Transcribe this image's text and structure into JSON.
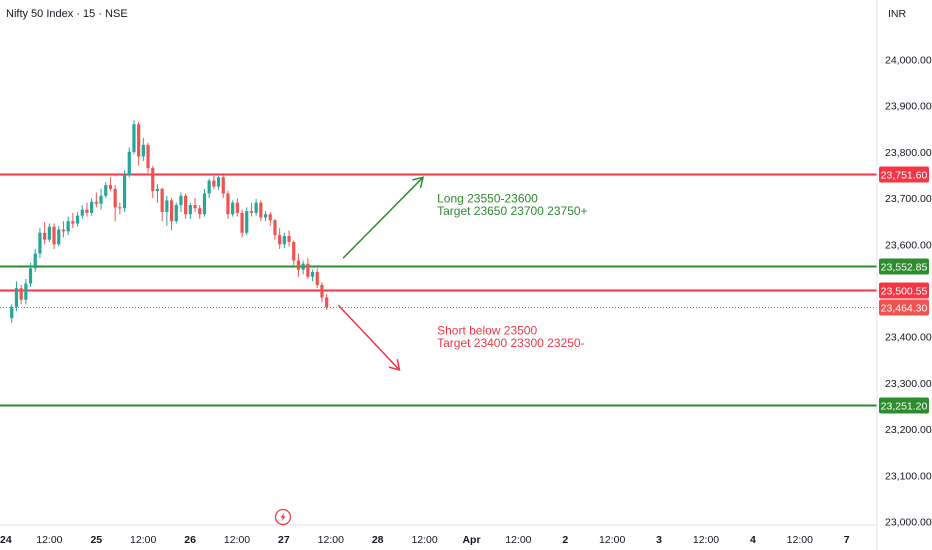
{
  "header": {
    "symbol_title": "Nifty 50 Index · 15 · NSE",
    "currency": "INR"
  },
  "colors": {
    "up": "#26a69a",
    "down": "#ef5350",
    "red_level": "#f23645",
    "green_level": "#2e8b2e",
    "last_price_badge": "#ef5350",
    "axis_text": "#131722",
    "axis_line": "#e0e3eb"
  },
  "event_icon": "lightning-icon",
  "chart_data": {
    "type": "candlestick",
    "title": "Nifty 50 Index · 15 · NSE",
    "ylim": [
      22990,
      24110
    ],
    "yticks": [
      {
        "value": 24000,
        "label": "24,000.00"
      },
      {
        "value": 23900,
        "label": "23,900.00"
      },
      {
        "value": 23800,
        "label": "23,800.00"
      },
      {
        "value": 23700,
        "label": "23,700.00"
      },
      {
        "value": 23600,
        "label": "23,600.00"
      },
      {
        "value": 23400,
        "label": "23,400.00"
      },
      {
        "value": 23300,
        "label": "23,300.00"
      },
      {
        "value": 23200,
        "label": "23,200.00"
      },
      {
        "value": 23100,
        "label": "23,100.00"
      },
      {
        "value": 23000,
        "label": "23,000.00"
      }
    ],
    "xticks": [
      {
        "pos": 0,
        "label": "24",
        "bold": true
      },
      {
        "pos": 1,
        "label": "12:00",
        "bold": false
      },
      {
        "pos": 2,
        "label": "25",
        "bold": true
      },
      {
        "pos": 3,
        "label": "12:00",
        "bold": false
      },
      {
        "pos": 4,
        "label": "26",
        "bold": true
      },
      {
        "pos": 5,
        "label": "12:00",
        "bold": false
      },
      {
        "pos": 6,
        "label": "27",
        "bold": true
      },
      {
        "pos": 7,
        "label": "12:00",
        "bold": false
      },
      {
        "pos": 8,
        "label": "28",
        "bold": true
      },
      {
        "pos": 9,
        "label": "12:00",
        "bold": false
      },
      {
        "pos": 10,
        "label": "Apr",
        "bold": true
      },
      {
        "pos": 11,
        "label": "12:00",
        "bold": false
      },
      {
        "pos": 12,
        "label": "2",
        "bold": true
      },
      {
        "pos": 13,
        "label": "12:00",
        "bold": false
      },
      {
        "pos": 14,
        "label": "3",
        "bold": true
      },
      {
        "pos": 15,
        "label": "12:00",
        "bold": false
      },
      {
        "pos": 16,
        "label": "4",
        "bold": true
      },
      {
        "pos": 17,
        "label": "12:00",
        "bold": false
      },
      {
        "pos": 18,
        "label": "7",
        "bold": true
      }
    ],
    "candles": [
      [
        23440,
        23470,
        23430,
        23465
      ],
      [
        23465,
        23520,
        23455,
        23505
      ],
      [
        23505,
        23512,
        23470,
        23480
      ],
      [
        23480,
        23525,
        23470,
        23515
      ],
      [
        23515,
        23560,
        23508,
        23548
      ],
      [
        23548,
        23590,
        23540,
        23580
      ],
      [
        23580,
        23635,
        23570,
        23625
      ],
      [
        23625,
        23648,
        23600,
        23610
      ],
      [
        23610,
        23645,
        23605,
        23638
      ],
      [
        23638,
        23645,
        23590,
        23600
      ],
      [
        23600,
        23640,
        23595,
        23632
      ],
      [
        23632,
        23650,
        23615,
        23628
      ],
      [
        23628,
        23660,
        23620,
        23650
      ],
      [
        23650,
        23668,
        23635,
        23645
      ],
      [
        23645,
        23670,
        23638,
        23662
      ],
      [
        23662,
        23685,
        23655,
        23675
      ],
      [
        23675,
        23690,
        23660,
        23668
      ],
      [
        23668,
        23700,
        23662,
        23692
      ],
      [
        23692,
        23712,
        23680,
        23688
      ],
      [
        23688,
        23720,
        23675,
        23705
      ],
      [
        23705,
        23735,
        23700,
        23728
      ],
      [
        23728,
        23745,
        23715,
        23720
      ],
      [
        23720,
        23728,
        23650,
        23680
      ],
      [
        23680,
        23690,
        23665,
        23678
      ],
      [
        23678,
        23760,
        23670,
        23750
      ],
      [
        23750,
        23810,
        23745,
        23800
      ],
      [
        23800,
        23868,
        23795,
        23860
      ],
      [
        23860,
        23865,
        23770,
        23790
      ],
      [
        23790,
        23830,
        23780,
        23815
      ],
      [
        23815,
        23820,
        23755,
        23765
      ],
      [
        23765,
        23770,
        23700,
        23715
      ],
      [
        23715,
        23730,
        23690,
        23720
      ],
      [
        23720,
        23722,
        23650,
        23670
      ],
      [
        23670,
        23705,
        23640,
        23695
      ],
      [
        23695,
        23700,
        23630,
        23650
      ],
      [
        23650,
        23690,
        23645,
        23685
      ],
      [
        23685,
        23712,
        23670,
        23705
      ],
      [
        23705,
        23710,
        23655,
        23665
      ],
      [
        23665,
        23690,
        23655,
        23685
      ],
      [
        23685,
        23700,
        23670,
        23678
      ],
      [
        23678,
        23685,
        23655,
        23665
      ],
      [
        23665,
        23720,
        23660,
        23710
      ],
      [
        23710,
        23742,
        23700,
        23738
      ],
      [
        23738,
        23748,
        23720,
        23725
      ],
      [
        23725,
        23748,
        23718,
        23745
      ],
      [
        23745,
        23750,
        23700,
        23710
      ],
      [
        23710,
        23716,
        23655,
        23665
      ],
      [
        23665,
        23695,
        23660,
        23690
      ],
      [
        23690,
        23700,
        23660,
        23668
      ],
      [
        23668,
        23675,
        23615,
        23625
      ],
      [
        23625,
        23680,
        23620,
        23672
      ],
      [
        23672,
        23690,
        23660,
        23668
      ],
      [
        23668,
        23698,
        23662,
        23690
      ],
      [
        23690,
        23695,
        23650,
        23658
      ],
      [
        23658,
        23672,
        23650,
        23665
      ],
      [
        23665,
        23670,
        23640,
        23652
      ],
      [
        23652,
        23655,
        23610,
        23620
      ],
      [
        23620,
        23635,
        23590,
        23600
      ],
      [
        23600,
        23625,
        23592,
        23618
      ],
      [
        23618,
        23630,
        23595,
        23605
      ],
      [
        23605,
        23608,
        23555,
        23565
      ],
      [
        23565,
        23580,
        23530,
        23545
      ],
      [
        23545,
        23565,
        23535,
        23558
      ],
      [
        23558,
        23570,
        23525,
        23530
      ],
      [
        23530,
        23545,
        23520,
        23540
      ],
      [
        23540,
        23548,
        23505,
        23512
      ],
      [
        23512,
        23518,
        23475,
        23485
      ],
      [
        23485,
        23492,
        23458,
        23464
      ]
    ],
    "first_candle_slot": 2,
    "levels": [
      {
        "value": 23751.6,
        "label": "23,751.60",
        "color": "#f23645"
      },
      {
        "value": 23552.85,
        "label": "23,552.85",
        "color": "#2e8b2e"
      },
      {
        "value": 23500.55,
        "label": "23,500.55",
        "color": "#f23645"
      },
      {
        "value": 23251.2,
        "label": "23,251.20",
        "color": "#2e8b2e"
      }
    ],
    "last_price": {
      "value": 23464.3,
      "label": "23,464.30"
    },
    "annotations": [
      {
        "id": "long",
        "color": "#2e8b2e",
        "lines": [
          "Long 23550-23600",
          "Target 23650 23700 23750+"
        ],
        "text_at": {
          "slot": 93,
          "value": 23690
        },
        "arrow_from": {
          "slot": 73,
          "value": 23570
        },
        "arrow_to": {
          "slot": 90,
          "value": 23745
        }
      },
      {
        "id": "short",
        "color": "#f23645",
        "lines": [
          "Short below 23500",
          "Target 23400 23300 23250-"
        ],
        "text_at": {
          "slot": 93,
          "value": 23405
        },
        "arrow_from": {
          "slot": 72,
          "value": 23468
        },
        "arrow_to": {
          "slot": 85,
          "value": 23328
        }
      }
    ]
  }
}
